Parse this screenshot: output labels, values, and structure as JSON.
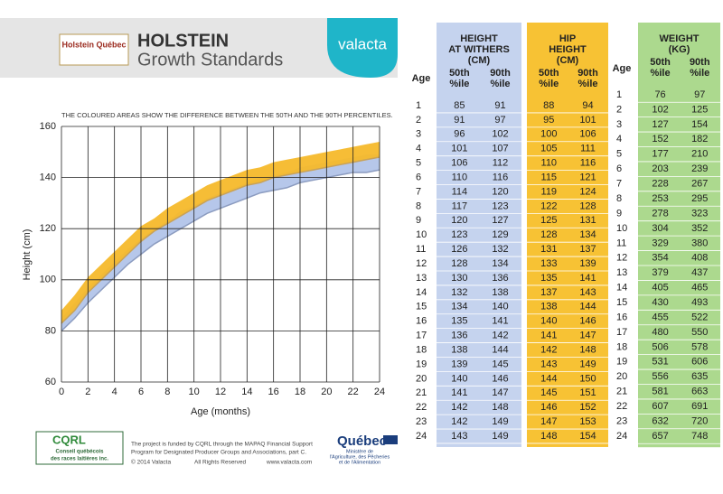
{
  "header": {
    "logo_text": "Holstein Québec",
    "title": "HOLSTEIN",
    "subtitle": "Growth Standards",
    "brand": "valacta"
  },
  "chart_data": {
    "type": "band",
    "title": "THE COLOURED AREAS SHOW THE DIFFERENCE BETWEEN THE 50TH AND THE 90TH PERCENTILES.",
    "xlabel": "Age (months)",
    "ylabel": "Height (cm)",
    "x": [
      0,
      1,
      2,
      3,
      4,
      5,
      6,
      7,
      8,
      9,
      10,
      11,
      12,
      13,
      14,
      15,
      16,
      17,
      18,
      19,
      20,
      21,
      22,
      23,
      24
    ],
    "xlim": [
      0,
      24
    ],
    "ylim": [
      60,
      160
    ],
    "xticks": [
      0,
      2,
      4,
      6,
      8,
      10,
      12,
      14,
      16,
      18,
      20,
      22,
      24
    ],
    "yticks": [
      60,
      80,
      100,
      120,
      140,
      160
    ],
    "grid": true,
    "series": [
      {
        "color": "#a9bde6",
        "line_color": "#8c9cc0",
        "low": [
          80,
          85,
          91,
          96,
          101,
          106,
          110,
          114,
          117,
          120,
          123,
          126,
          128,
          130,
          132,
          134,
          135,
          136,
          138,
          139,
          140,
          141,
          142,
          142,
          143
        ],
        "high": [
          85,
          91,
          97,
          102,
          107,
          112,
          116,
          120,
          123,
          127,
          129,
          132,
          134,
          136,
          138,
          140,
          141,
          142,
          144,
          145,
          146,
          147,
          148,
          149,
          149
        ]
      },
      {
        "color": "#f6b92b",
        "line_color": "#c9a257",
        "low": [
          83,
          88,
          95,
          100,
          105,
          110,
          115,
          119,
          122,
          125,
          128,
          131,
          133,
          135,
          137,
          138,
          140,
          141,
          142,
          143,
          144,
          145,
          146,
          147,
          148
        ],
        "high": [
          88,
          94,
          101,
          106,
          111,
          116,
          121,
          124,
          128,
          131,
          134,
          137,
          139,
          141,
          143,
          144,
          146,
          147,
          148,
          149,
          150,
          151,
          152,
          153,
          154
        ]
      }
    ]
  },
  "height_table": {
    "age_header": "Age",
    "ages": [
      1,
      2,
      3,
      4,
      5,
      6,
      7,
      8,
      9,
      10,
      11,
      12,
      13,
      14,
      15,
      16,
      17,
      18,
      19,
      20,
      21,
      22,
      23,
      24
    ],
    "groups": [
      {
        "title_lines": [
          "HEIGHT",
          "AT WITHERS",
          "(CM)"
        ],
        "color": "#c5d3ee",
        "col_headers": [
          [
            "50th",
            "%ile"
          ],
          [
            "90th",
            "%ile"
          ]
        ],
        "rows": [
          [
            85,
            91
          ],
          [
            91,
            97
          ],
          [
            96,
            102
          ],
          [
            101,
            107
          ],
          [
            106,
            112
          ],
          [
            110,
            116
          ],
          [
            114,
            120
          ],
          [
            117,
            123
          ],
          [
            120,
            127
          ],
          [
            123,
            129
          ],
          [
            126,
            132
          ],
          [
            128,
            134
          ],
          [
            130,
            136
          ],
          [
            132,
            138
          ],
          [
            134,
            140
          ],
          [
            135,
            141
          ],
          [
            136,
            142
          ],
          [
            138,
            144
          ],
          [
            139,
            145
          ],
          [
            140,
            146
          ],
          [
            141,
            147
          ],
          [
            142,
            148
          ],
          [
            142,
            149
          ],
          [
            143,
            149
          ]
        ]
      },
      {
        "title_lines": [
          "HIP",
          "HEIGHT",
          "(CM)"
        ],
        "color": "#f7c234",
        "col_headers": [
          [
            "50th",
            "%ile"
          ],
          [
            "90th",
            "%ile"
          ]
        ],
        "rows": [
          [
            88,
            94
          ],
          [
            95,
            101
          ],
          [
            100,
            106
          ],
          [
            105,
            111
          ],
          [
            110,
            116
          ],
          [
            115,
            121
          ],
          [
            119,
            124
          ],
          [
            122,
            128
          ],
          [
            125,
            131
          ],
          [
            128,
            134
          ],
          [
            131,
            137
          ],
          [
            133,
            139
          ],
          [
            135,
            141
          ],
          [
            137,
            143
          ],
          [
            138,
            144
          ],
          [
            140,
            146
          ],
          [
            141,
            147
          ],
          [
            142,
            148
          ],
          [
            143,
            149
          ],
          [
            144,
            150
          ],
          [
            145,
            151
          ],
          [
            146,
            152
          ],
          [
            147,
            153
          ],
          [
            148,
            154
          ]
        ]
      }
    ]
  },
  "weight_table": {
    "age_header": "Age",
    "title_lines": [
      "WEIGHT",
      "(KG)"
    ],
    "color": "#acd98e",
    "col_headers": [
      [
        "50th",
        "%ile"
      ],
      [
        "90th",
        "%ile"
      ]
    ],
    "ages": [
      1,
      2,
      3,
      4,
      5,
      6,
      7,
      8,
      9,
      10,
      11,
      12,
      13,
      14,
      15,
      16,
      17,
      18,
      19,
      20,
      21,
      22,
      23,
      24
    ],
    "rows": [
      [
        76,
        97
      ],
      [
        102,
        125
      ],
      [
        127,
        154
      ],
      [
        152,
        182
      ],
      [
        177,
        210
      ],
      [
        203,
        239
      ],
      [
        228,
        267
      ],
      [
        253,
        295
      ],
      [
        278,
        323
      ],
      [
        304,
        352
      ],
      [
        329,
        380
      ],
      [
        354,
        408
      ],
      [
        379,
        437
      ],
      [
        405,
        465
      ],
      [
        430,
        493
      ],
      [
        455,
        522
      ],
      [
        480,
        550
      ],
      [
        506,
        578
      ],
      [
        531,
        606
      ],
      [
        556,
        635
      ],
      [
        581,
        663
      ],
      [
        607,
        691
      ],
      [
        632,
        720
      ],
      [
        657,
        748
      ]
    ]
  },
  "footer": {
    "cqrl": "CQRL",
    "cqrl_lines": [
      "Conseil québécois",
      "des races laitières inc."
    ],
    "funding_lines": [
      "The project is funded by CQRL through the MAPAQ Financial Support",
      "Program for Designated Producer Groups and Associations, part C."
    ],
    "copyright": "© 2014 Valacta",
    "rights": "All Rights Reserved",
    "website": "www.valacta.com",
    "quebec": "Québec",
    "ministry_lines": [
      "Ministère de",
      "l'Agriculture, des Pêcheries",
      "et de l'Alimentation"
    ]
  }
}
